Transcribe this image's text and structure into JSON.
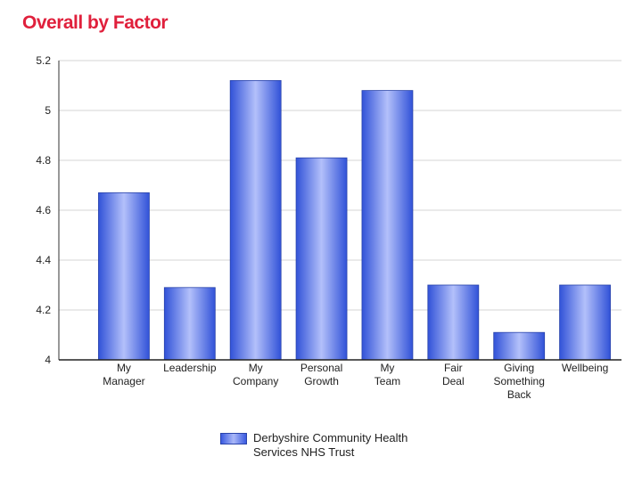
{
  "title": "Overall by Factor",
  "colors": {
    "title": "#e0203c",
    "bar_edge": "#3152d8",
    "bar_center": "#b3c0fa",
    "grid": "#d4d4d4",
    "axis": "#555555"
  },
  "chart_data": {
    "type": "bar",
    "title": "Overall by Factor",
    "categories": [
      [
        "My",
        "Manager"
      ],
      [
        "Leadership"
      ],
      [
        "My",
        "Company"
      ],
      [
        "Personal",
        "Growth"
      ],
      [
        "My",
        "Team"
      ],
      [
        "Fair",
        "Deal"
      ],
      [
        "Giving",
        "Something",
        "Back"
      ],
      [
        "Wellbeing"
      ]
    ],
    "series": [
      {
        "name": "Derbyshire Community Health Services NHS Trust",
        "values": [
          4.67,
          4.29,
          5.12,
          4.81,
          5.08,
          4.3,
          4.11,
          4.3
        ]
      }
    ],
    "ylim": [
      4,
      5.2
    ],
    "yticks": [
      "5.2",
      "5",
      "4.8",
      "4.6",
      "4.4",
      "4.2",
      "4"
    ],
    "grid": true,
    "legend_position": "bottom"
  },
  "legend": {
    "label_line1": "Derbyshire Community Health",
    "label_line2": "Services NHS Trust"
  }
}
